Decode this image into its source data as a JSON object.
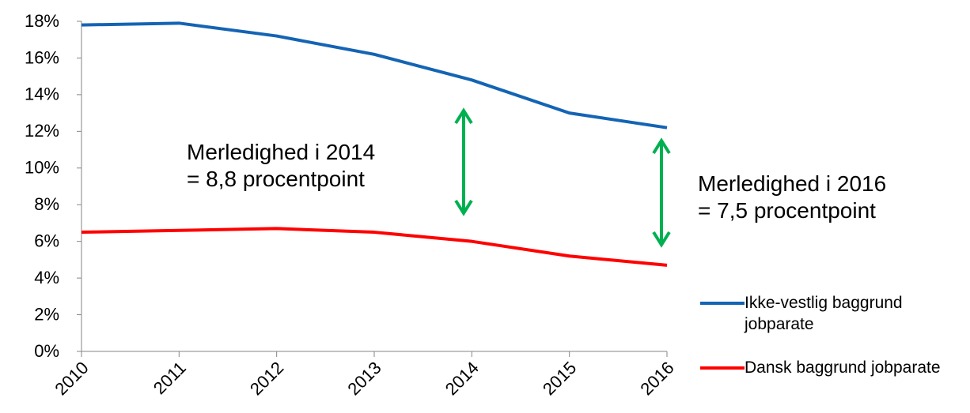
{
  "chart_data": {
    "type": "line",
    "categories": [
      "2010",
      "2011",
      "2012",
      "2013",
      "2014",
      "2015",
      "2016"
    ],
    "series": [
      {
        "name": "Ikke-vestlig baggrund jobparate",
        "color": "#1464b4",
        "values": [
          17.8,
          17.9,
          17.2,
          16.2,
          14.8,
          13.0,
          12.2
        ]
      },
      {
        "name": "Dansk baggrund jobparate",
        "color": "#ff0000",
        "values": [
          6.5,
          6.6,
          6.7,
          6.5,
          6.0,
          5.2,
          4.7
        ]
      }
    ],
    "ylim": [
      0,
      18
    ],
    "yticks": [
      {
        "value": 0,
        "label": "0%"
      },
      {
        "value": 2,
        "label": "2%"
      },
      {
        "value": 4,
        "label": "4%"
      },
      {
        "value": 6,
        "label": "6%"
      },
      {
        "value": 8,
        "label": "8%"
      },
      {
        "value": 10,
        "label": "10%"
      },
      {
        "value": 12,
        "label": "12%"
      },
      {
        "value": 14,
        "label": "14%"
      },
      {
        "value": 16,
        "label": "16%"
      },
      {
        "value": 18,
        "label": "18%"
      }
    ],
    "annotations": [
      {
        "lines": [
          "Merledighed i 2014",
          "= 8,8 procentpoint"
        ]
      },
      {
        "lines": [
          "Merledighed i 2016",
          "= 7,5 procentpoint"
        ]
      }
    ],
    "grid": false,
    "legend": "right"
  }
}
